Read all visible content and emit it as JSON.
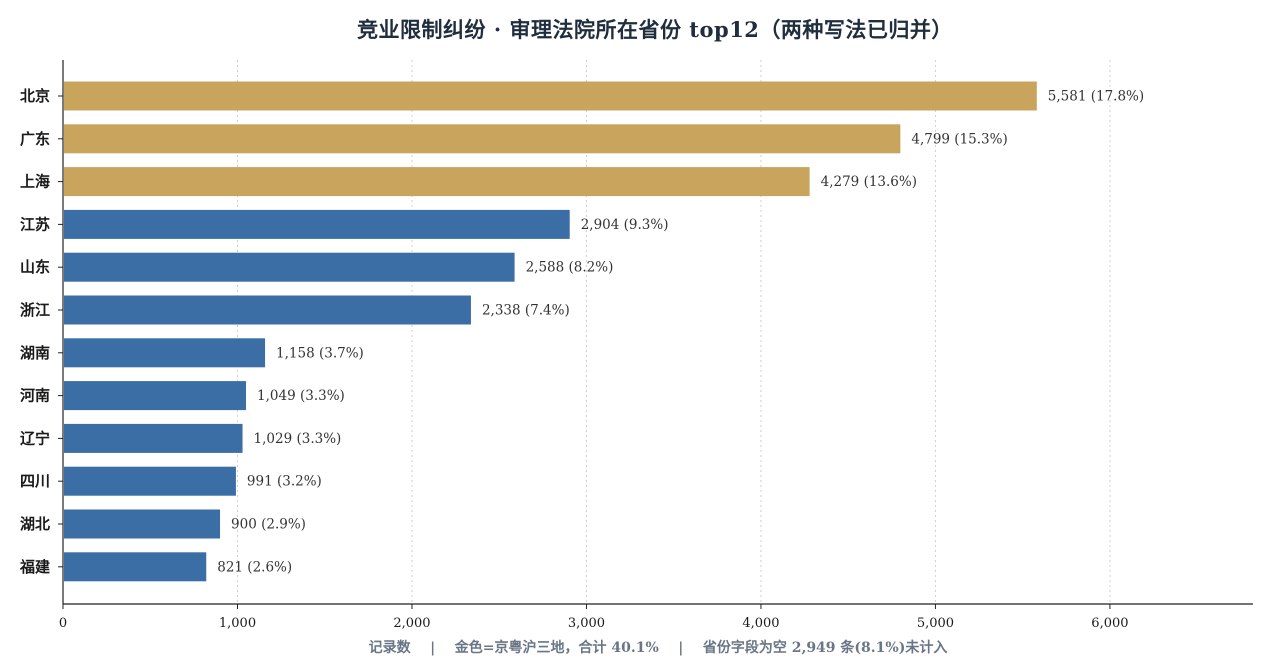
{
  "chart_data": {
    "type": "bar",
    "orientation": "horizontal",
    "title": "竞业限制纠纷 · 审理法院所在省份 top12（两种写法已归并）",
    "xlabel": "记录数    |    金色=京粤沪三地，合计 40.1%    |    省份字段为空 2,949 条(8.1%)未计入",
    "categories": [
      "北京",
      "广东",
      "上海",
      "江苏",
      "山东",
      "浙江",
      "湖南",
      "河南",
      "辽宁",
      "四川",
      "湖北",
      "福建"
    ],
    "values": [
      5581,
      4799,
      4279,
      2904,
      2588,
      2338,
      1158,
      1049,
      1029,
      991,
      900,
      821
    ],
    "data_labels": [
      "5,581 (17.8%)",
      "4,799 (15.3%)",
      "4,279 (13.6%)",
      "2,904 (9.3%)",
      "2,588 (8.2%)",
      "2,338 (7.4%)",
      "1,158 (3.7%)",
      "1,049 (3.3%)",
      "1,029 (3.3%)",
      "991 (3.2%)",
      "900 (2.9%)",
      "821 (2.6%)"
    ],
    "highlight": [
      true,
      true,
      true,
      false,
      false,
      false,
      false,
      false,
      false,
      false,
      false,
      false
    ],
    "xticks": [
      0,
      1000,
      2000,
      3000,
      4000,
      5000,
      6000
    ],
    "xtick_labels": [
      "0",
      "1,000",
      "2,000",
      "3,000",
      "4,000",
      "5,000",
      "6,000"
    ],
    "xlim": [
      0,
      6820
    ],
    "grid": "vertical-dotted",
    "colors": {
      "highlight": "#c9a45c",
      "normal": "#3a6ea5",
      "grid": "#d0d0d0",
      "axis": "#222222"
    }
  }
}
